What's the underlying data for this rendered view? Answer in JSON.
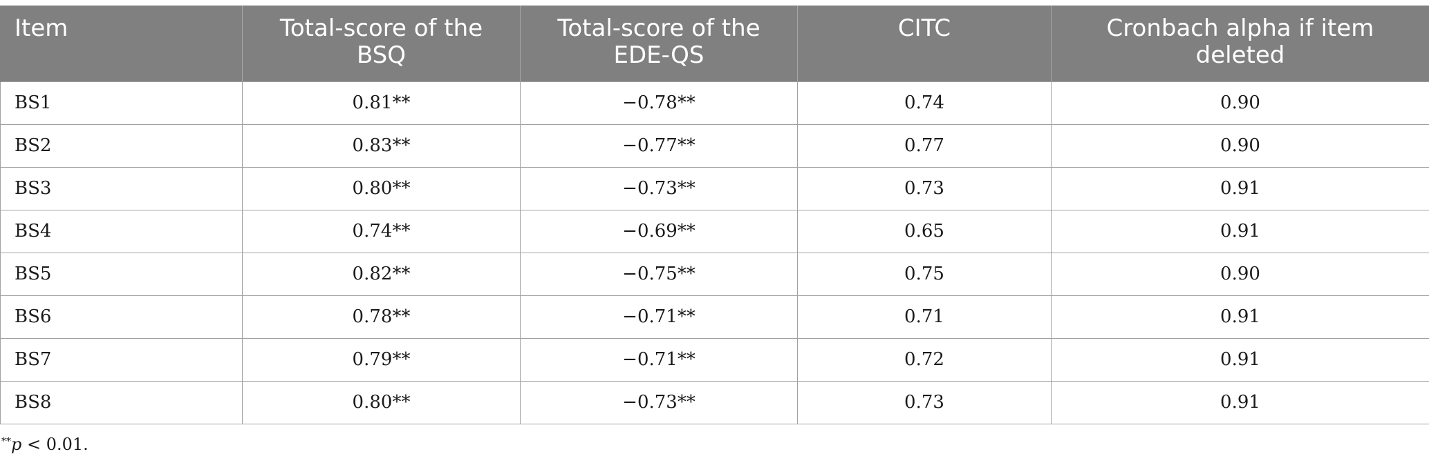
{
  "table": {
    "headers": [
      "Item",
      "Total-score of the BSQ",
      "Total-score of the EDE-QS",
      "CITC",
      "Cronbach alpha if item deleted"
    ],
    "rows": [
      [
        "BS1",
        "0.81**",
        "−0.78**",
        "0.74",
        "0.90"
      ],
      [
        "BS2",
        "0.83**",
        "−0.77**",
        "0.77",
        "0.90"
      ],
      [
        "BS3",
        "0.80**",
        "−0.73**",
        "0.73",
        "0.91"
      ],
      [
        "BS4",
        "0.74**",
        "−0.69**",
        "0.65",
        "0.91"
      ],
      [
        "BS5",
        "0.82**",
        "−0.75**",
        "0.75",
        "0.90"
      ],
      [
        "BS6",
        "0.78**",
        "−0.71**",
        "0.71",
        "0.91"
      ],
      [
        "BS7",
        "0.79**",
        "−0.71**",
        "0.72",
        "0.91"
      ],
      [
        "BS8",
        "0.80**",
        "−0.73**",
        "0.73",
        "0.91"
      ]
    ]
  },
  "footnote": {
    "marker": "**",
    "variable": "p",
    "text": " < 0.01."
  },
  "colors": {
    "header_bg": "#808080",
    "header_text": "#ffffff",
    "border": "#a0a0a0"
  }
}
